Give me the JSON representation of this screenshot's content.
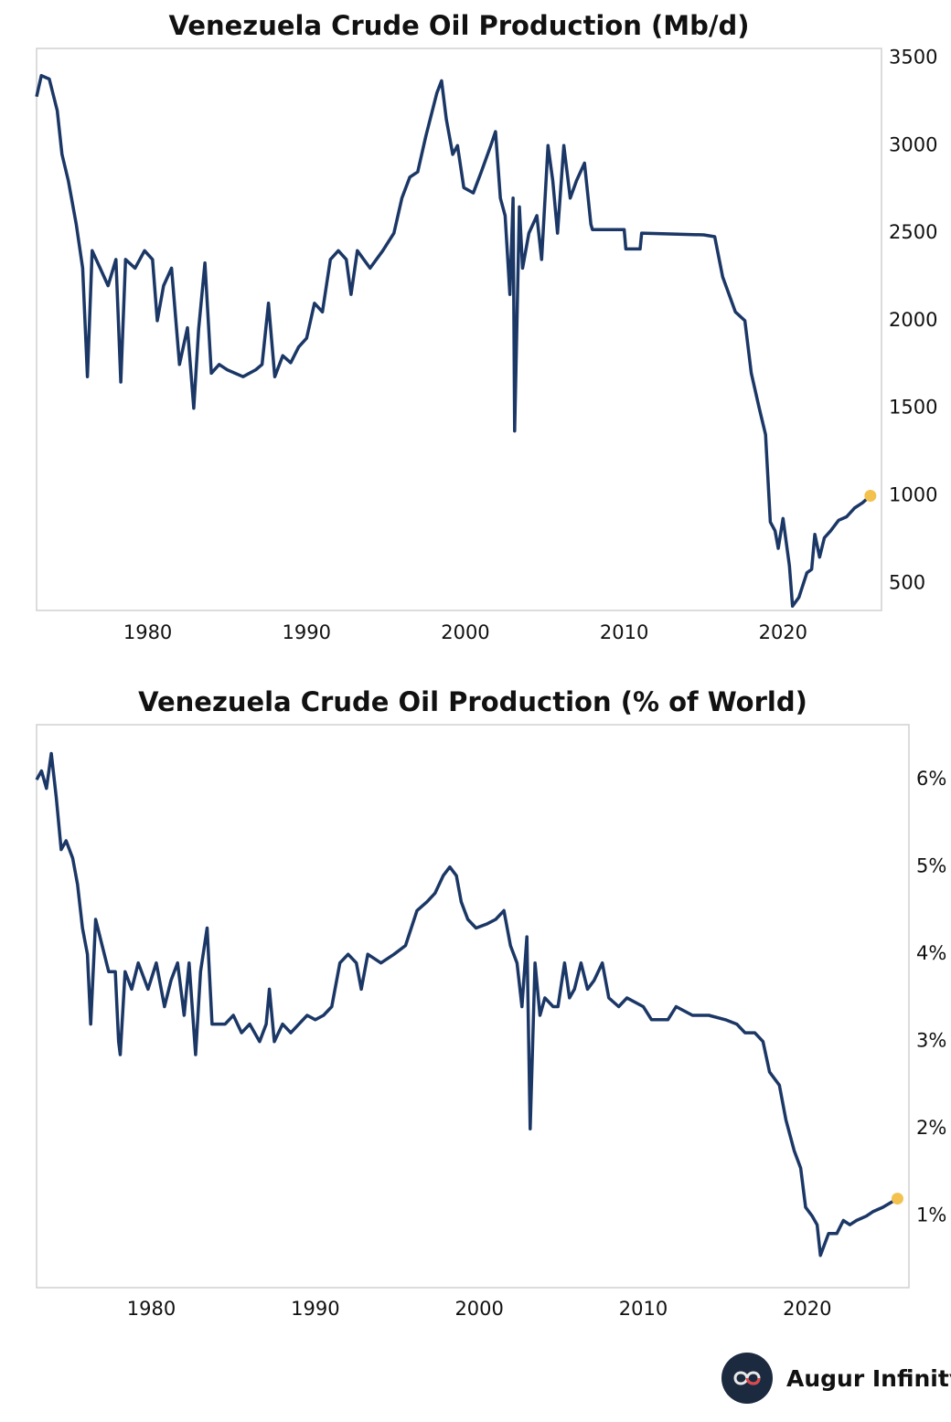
{
  "chart_data": [
    {
      "type": "line",
      "title": "Venezuela Crude Oil Production (Mb/d)",
      "color": "#1b3766",
      "end_marker_color": "#f2c14e",
      "xlim": [
        1973,
        2026.2
      ],
      "xticks": [
        1980,
        1990,
        2000,
        2010,
        2020
      ],
      "ylim": [
        345,
        3555
      ],
      "yticks": [
        500,
        1000,
        1500,
        2000,
        2500,
        3000,
        3500
      ],
      "y_axis_side": "right",
      "grid": false,
      "x": [
        1973.0,
        1973.3,
        1973.8,
        1974.3,
        1974.6,
        1975.0,
        1975.5,
        1975.9,
        1976.2,
        1976.5,
        1977.0,
        1977.5,
        1978.0,
        1978.3,
        1978.6,
        1979.2,
        1979.8,
        1980.3,
        1980.6,
        1981.0,
        1981.5,
        1982.0,
        1982.5,
        1982.9,
        1983.2,
        1983.6,
        1984.0,
        1984.5,
        1985.0,
        1986.0,
        1986.8,
        1987.2,
        1987.6,
        1988.0,
        1988.5,
        1989.0,
        1989.5,
        1990.0,
        1990.5,
        1991.0,
        1991.5,
        1992.0,
        1992.5,
        1992.8,
        1993.2,
        1994.0,
        1994.8,
        1995.5,
        1996.0,
        1996.5,
        1997.0,
        1997.5,
        1998.2,
        1998.5,
        1998.8,
        1999.2,
        1999.5,
        1999.9,
        2000.5,
        2001.0,
        2001.6,
        2001.9,
        2002.2,
        2002.5,
        2002.8,
        2003.0,
        2003.1,
        2003.4,
        2003.6,
        2004.0,
        2004.5,
        2004.8,
        2005.2,
        2005.5,
        2005.8,
        2006.2,
        2006.6,
        2007.0,
        2007.5,
        2007.9,
        2008.0,
        2009.0,
        2010.0,
        2010.1,
        2011.0,
        2011.1,
        2015.0,
        2015.7,
        2016.2,
        2016.6,
        2017.0,
        2017.6,
        2018.0,
        2018.5,
        2018.9,
        2019.2,
        2019.5,
        2019.7,
        2020.0,
        2020.4,
        2020.6,
        2021.0,
        2021.5,
        2021.8,
        2022.0,
        2022.3,
        2022.6,
        2023.0,
        2023.5,
        2024.0,
        2024.5,
        2025.0,
        2025.5
      ],
      "values": [
        3280,
        3400,
        3380,
        3200,
        2950,
        2800,
        2550,
        2300,
        1680,
        2400,
        2300,
        2200,
        2350,
        1650,
        2350,
        2300,
        2400,
        2350,
        2000,
        2200,
        2300,
        1750,
        1960,
        1500,
        1950,
        2330,
        1700,
        1750,
        1720,
        1680,
        1720,
        1750,
        2100,
        1680,
        1800,
        1760,
        1850,
        1900,
        2100,
        2050,
        2350,
        2400,
        2350,
        2150,
        2400,
        2300,
        2400,
        2500,
        2700,
        2820,
        2850,
        3050,
        3300,
        3370,
        3150,
        2950,
        3000,
        2760,
        2730,
        2850,
        3000,
        3080,
        2700,
        2600,
        2150,
        2700,
        1370,
        2650,
        2300,
        2500,
        2600,
        2350,
        3000,
        2800,
        2500,
        3000,
        2700,
        2800,
        2900,
        2550,
        2520,
        2520,
        2520,
        2410,
        2410,
        2500,
        2490,
        2480,
        2250,
        2150,
        2050,
        2000,
        1700,
        1500,
        1350,
        850,
        800,
        700,
        870,
        600,
        370,
        420,
        560,
        580,
        780,
        650,
        760,
        800,
        860,
        880,
        930,
        960,
        1000
      ]
    },
    {
      "type": "line",
      "title": "Venezuela Crude Oil Production (% of World)",
      "color": "#1b3766",
      "end_marker_color": "#f2c14e",
      "xlim": [
        1973,
        2026.2
      ],
      "xticks": [
        1980,
        1990,
        2000,
        2010,
        2020
      ],
      "ylim": [
        0.18,
        6.63
      ],
      "yticks": [
        {
          "value": 1,
          "label": "1%"
        },
        {
          "value": 2,
          "label": "2%"
        },
        {
          "value": 3,
          "label": "3%"
        },
        {
          "value": 4,
          "label": "4%"
        },
        {
          "value": 5,
          "label": "5%"
        },
        {
          "value": 6,
          "label": "6%"
        }
      ],
      "y_axis_side": "right",
      "grid": false,
      "x": [
        1973.0,
        1973.3,
        1973.6,
        1973.9,
        1974.2,
        1974.5,
        1974.8,
        1975.2,
        1975.5,
        1975.8,
        1976.1,
        1976.3,
        1976.6,
        1977.0,
        1977.4,
        1977.8,
        1978.0,
        1978.1,
        1978.4,
        1978.8,
        1979.2,
        1979.8,
        1980.3,
        1980.8,
        1981.2,
        1981.6,
        1982.0,
        1982.3,
        1982.7,
        1983.0,
        1983.4,
        1983.7,
        1984.5,
        1985.0,
        1985.5,
        1986.0,
        1986.6,
        1987.0,
        1987.2,
        1987.5,
        1988.0,
        1988.5,
        1989.0,
        1989.5,
        1990.0,
        1990.5,
        1991.0,
        1991.5,
        1992.0,
        1992.5,
        1992.8,
        1993.2,
        1994.0,
        1994.8,
        1995.5,
        1996.2,
        1996.8,
        1997.3,
        1997.8,
        1998.2,
        1998.6,
        1998.9,
        1999.3,
        1999.8,
        2000.5,
        2001.0,
        2001.5,
        2001.9,
        2002.3,
        2002.6,
        2002.9,
        2003.1,
        2003.4,
        2003.7,
        2004.0,
        2004.5,
        2004.8,
        2005.2,
        2005.5,
        2005.8,
        2006.2,
        2006.6,
        2007.0,
        2007.5,
        2007.9,
        2008.5,
        2009.0,
        2010.0,
        2010.5,
        2011.5,
        2012.0,
        2013.0,
        2014.0,
        2015.0,
        2015.7,
        2016.2,
        2016.8,
        2017.3,
        2017.7,
        2018.3,
        2018.7,
        2019.2,
        2019.6,
        2019.9,
        2020.3,
        2020.6,
        2020.8,
        2021.3,
        2021.8,
        2022.2,
        2022.6,
        2023.0,
        2023.6,
        2024.0,
        2024.6,
        2025.5
      ],
      "values": [
        6.0,
        6.1,
        5.9,
        6.3,
        5.8,
        5.2,
        5.3,
        5.1,
        4.8,
        4.3,
        4.0,
        3.2,
        4.4,
        4.1,
        3.8,
        3.8,
        3.0,
        2.85,
        3.8,
        3.6,
        3.9,
        3.6,
        3.9,
        3.4,
        3.7,
        3.9,
        3.3,
        3.9,
        2.85,
        3.8,
        4.3,
        3.2,
        3.2,
        3.3,
        3.1,
        3.2,
        3.0,
        3.2,
        3.6,
        3.0,
        3.2,
        3.1,
        3.2,
        3.3,
        3.25,
        3.3,
        3.4,
        3.9,
        4.0,
        3.9,
        3.6,
        4.0,
        3.9,
        4.0,
        4.1,
        4.5,
        4.6,
        4.7,
        4.9,
        5.0,
        4.9,
        4.6,
        4.4,
        4.3,
        4.35,
        4.4,
        4.5,
        4.1,
        3.9,
        3.4,
        4.2,
        2.0,
        3.9,
        3.3,
        3.5,
        3.4,
        3.4,
        3.9,
        3.5,
        3.6,
        3.9,
        3.6,
        3.7,
        3.9,
        3.5,
        3.4,
        3.5,
        3.4,
        3.25,
        3.25,
        3.4,
        3.3,
        3.3,
        3.25,
        3.2,
        3.1,
        3.1,
        3.0,
        2.65,
        2.5,
        2.1,
        1.75,
        1.55,
        1.1,
        1.0,
        0.9,
        0.55,
        0.8,
        0.8,
        0.95,
        0.9,
        0.95,
        1.0,
        1.05,
        1.1,
        1.2
      ]
    }
  ],
  "footer": {
    "brand": "Augur Infinity"
  }
}
